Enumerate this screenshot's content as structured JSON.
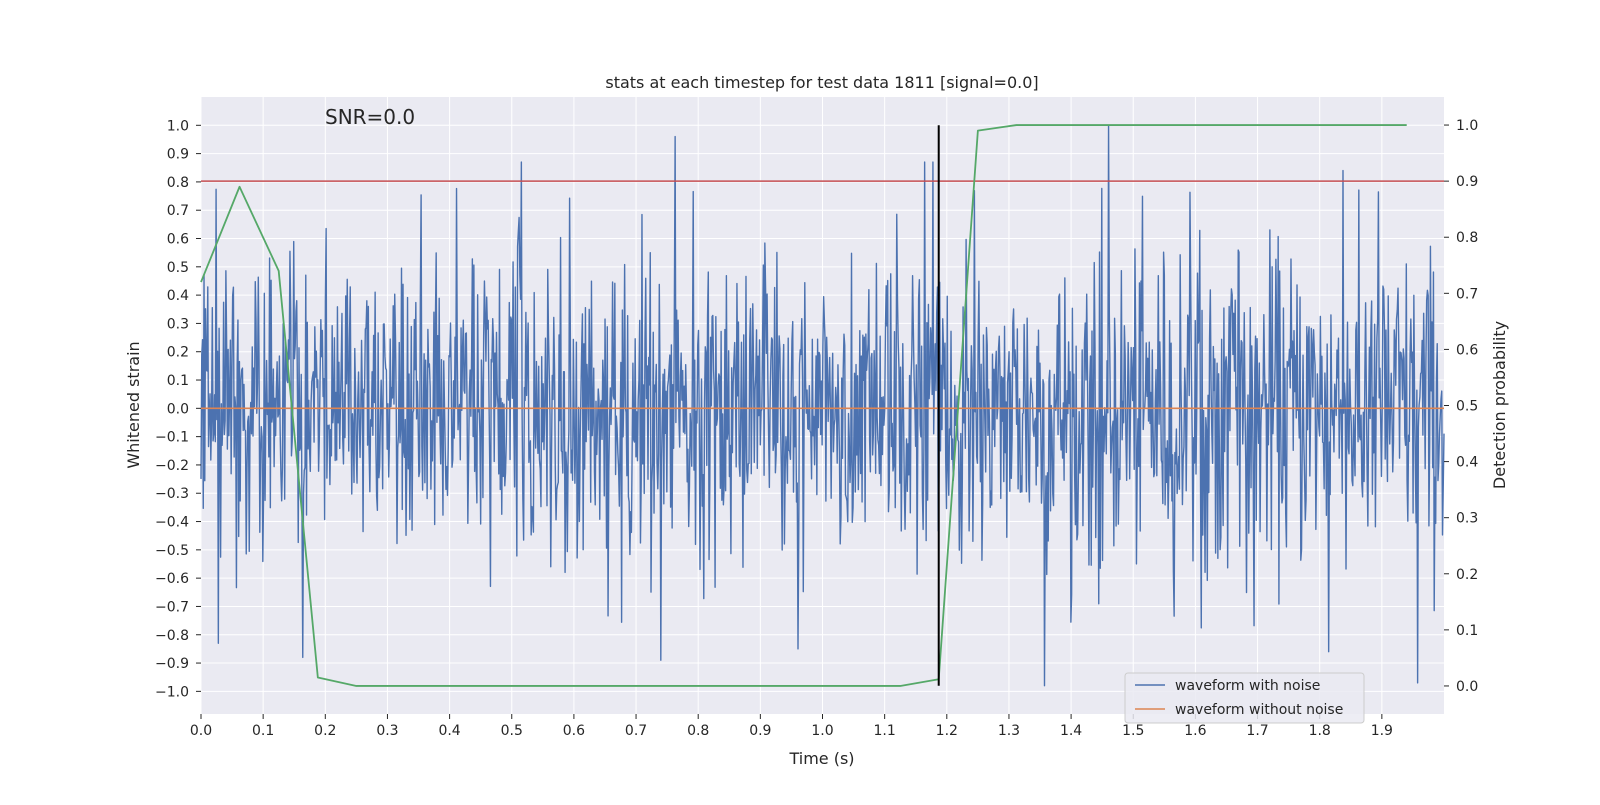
{
  "chart_data": {
    "type": "line",
    "title": "stats at each timestep for test data 1811 [signal=0.0]",
    "annotation": "SNR=0.0",
    "xlabel": "Time (s)",
    "ylabel": "Whitened strain",
    "y2label": "Detection probability",
    "xlim": [
      0.0,
      2.0
    ],
    "ylim": [
      -1.08,
      1.1
    ],
    "y2lim": [
      -0.05,
      1.05
    ],
    "x_ticks": [
      "0.0",
      "0.1",
      "0.2",
      "0.3",
      "0.4",
      "0.5",
      "0.6",
      "0.7",
      "0.8",
      "0.9",
      "1.0",
      "1.1",
      "1.2",
      "1.3",
      "1.4",
      "1.5",
      "1.6",
      "1.7",
      "1.8",
      "1.9"
    ],
    "y_ticks": [
      "−1.0",
      "−0.9",
      "−0.8",
      "−0.7",
      "−0.6",
      "−0.5",
      "−0.4",
      "−0.3",
      "−0.2",
      "−0.1",
      "0.0",
      "0.1",
      "0.2",
      "0.3",
      "0.4",
      "0.5",
      "0.6",
      "0.7",
      "0.8",
      "0.9",
      "1.0"
    ],
    "y2_ticks": [
      "0.0",
      "0.1",
      "0.2",
      "0.3",
      "0.4",
      "0.5",
      "0.6",
      "0.7",
      "0.8",
      "0.9",
      "1.0"
    ],
    "threshold": {
      "axis": "y2",
      "value": 0.9,
      "color": "#c44e52"
    },
    "marker_line": {
      "x": 1.187,
      "y_from": -0.98,
      "y_to": 1.0,
      "color": "#000000"
    },
    "series": [
      {
        "name": "waveform with noise",
        "color": "#4c72b0",
        "axis": "y",
        "kind": "noise",
        "sample_count": 1650,
        "peaks": [
          {
            "t": 0.515,
            "v": 0.87
          },
          {
            "t": 0.763,
            "v": 0.96
          },
          {
            "t": 1.164,
            "v": 0.87
          },
          {
            "t": 1.178,
            "v": 0.87
          },
          {
            "t": 1.46,
            "v": 1.0
          },
          {
            "t": 1.838,
            "v": 0.84
          },
          {
            "t": 0.028,
            "v": -0.83
          },
          {
            "t": 0.164,
            "v": -0.88
          },
          {
            "t": 0.74,
            "v": -0.89
          },
          {
            "t": 0.96,
            "v": -0.85
          },
          {
            "t": 1.357,
            "v": -0.98
          },
          {
            "t": 1.815,
            "v": -0.86
          },
          {
            "t": 1.957,
            "v": -0.97
          }
        ]
      },
      {
        "name": "waveform without noise",
        "color": "#dd8452",
        "axis": "y",
        "kind": "flat",
        "x": [
          0.0,
          2.0
        ],
        "y": [
          0.0,
          0.0
        ]
      },
      {
        "name": "detection probability",
        "color": "#55a868",
        "axis": "y2",
        "kind": "line",
        "x": [
          0.0,
          0.062,
          0.125,
          0.188,
          0.25,
          0.5,
          0.75,
          1.0,
          1.125,
          1.187,
          1.25,
          1.312,
          1.5,
          1.75,
          1.94
        ],
        "y": [
          0.72,
          0.89,
          0.74,
          0.015,
          0.0,
          0.0,
          0.0,
          0.0,
          0.0,
          0.012,
          0.99,
          1.0,
          1.0,
          1.0,
          1.0
        ]
      }
    ],
    "legend": {
      "position": "lower-right",
      "entries": [
        "waveform with noise",
        "waveform without noise"
      ]
    }
  }
}
